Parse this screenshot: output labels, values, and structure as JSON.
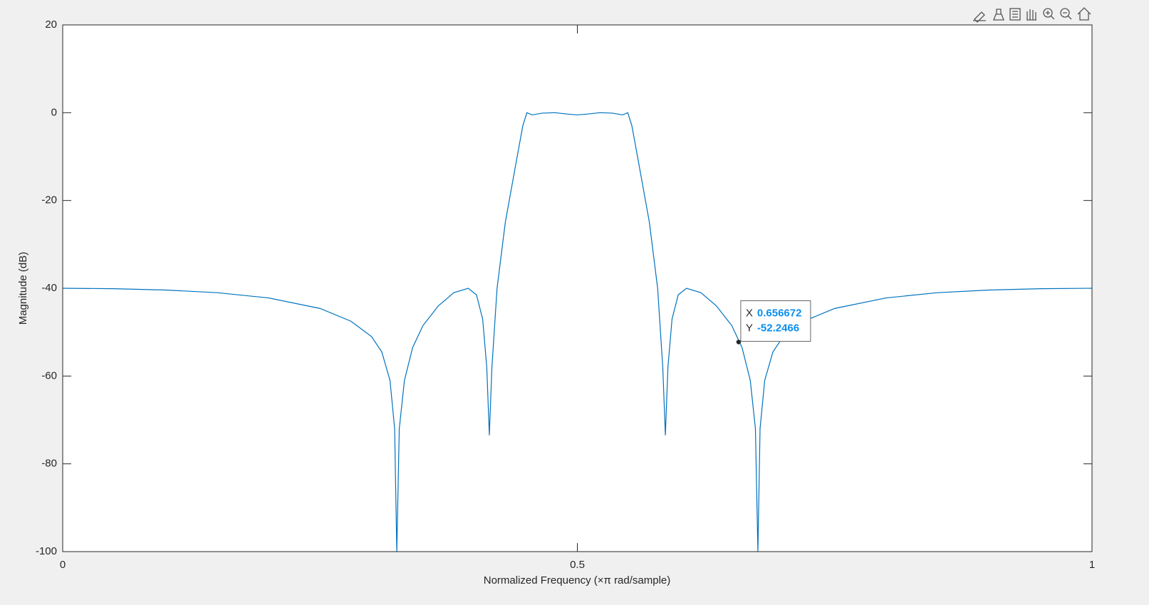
{
  "chart_data": {
    "type": "line",
    "x_label": "Normalized Frequency (×π rad/sample)",
    "y_label": "Magnitude (dB)",
    "x": [
      0,
      0.05,
      0.1,
      0.15,
      0.2,
      0.25,
      0.28,
      0.3,
      0.31,
      0.318,
      0.3225,
      0.3246,
      0.327,
      0.332,
      0.34,
      0.35,
      0.365,
      0.38,
      0.394,
      0.402,
      0.408,
      0.412,
      0.4145,
      0.417,
      0.422,
      0.43,
      0.44,
      0.447,
      0.451,
      0.456,
      0.466,
      0.478,
      0.49,
      0.5,
      0.51,
      0.522,
      0.534,
      0.544,
      0.549,
      0.553,
      0.56,
      0.57,
      0.578,
      0.583,
      0.5855,
      0.588,
      0.592,
      0.598,
      0.606,
      0.62,
      0.635,
      0.65,
      0.66,
      0.668,
      0.673,
      0.6754,
      0.6775,
      0.682,
      0.69,
      0.7,
      0.72,
      0.75,
      0.8,
      0.85,
      0.9,
      0.95,
      1
    ],
    "series": [
      {
        "color": "#0072bd",
        "values": [
          -40,
          -40.1,
          -40.4,
          -41,
          -42.2,
          -44.6,
          -47.5,
          -51,
          -54.5,
          -61,
          -72,
          -100,
          -72,
          -61,
          -53.5,
          -48.5,
          -44,
          -41,
          -40,
          -41.5,
          -47,
          -58,
          -73.5,
          -58,
          -40,
          -25,
          -12,
          -3,
          0,
          -0.5,
          -0.1,
          0,
          -0.3,
          -0.5,
          -0.3,
          0,
          -0.1,
          -0.5,
          0,
          -3,
          -12,
          -25,
          -40,
          -58,
          -73.5,
          -58,
          -47,
          -41.5,
          -40,
          -41,
          -44,
          -48.5,
          -53.5,
          -61,
          -72,
          -100,
          -72,
          -61,
          -54.5,
          -51,
          -47.5,
          -44.6,
          -42.2,
          -41,
          -40.4,
          -40.1,
          -40
        ]
      }
    ],
    "xlim": [
      0,
      1
    ],
    "xticks": [
      0,
      0.5,
      1
    ],
    "ylim": [
      -100,
      20
    ],
    "yticks": [
      -100,
      -80,
      -60,
      -40,
      -20,
      0,
      20
    ],
    "datatip": {
      "x_label": "X",
      "x": 0.656672,
      "y_label": "Y",
      "y": -52.2466
    }
  }
}
